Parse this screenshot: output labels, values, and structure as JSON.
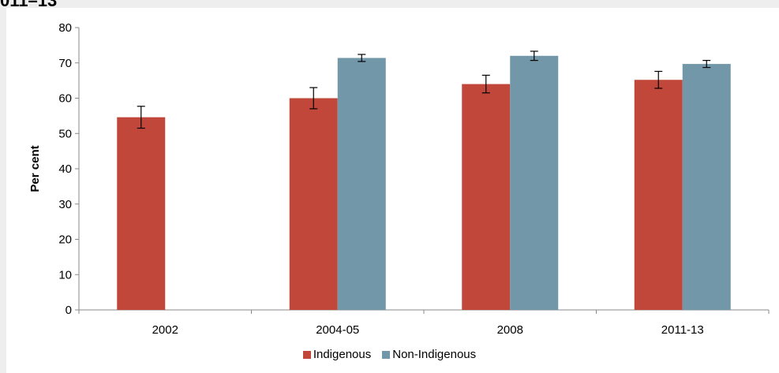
{
  "page": {
    "title_fragment": "011–13"
  },
  "chart_data": {
    "type": "bar",
    "title": "",
    "xlabel": "",
    "ylabel": "Per cent",
    "ylim": [
      0,
      80
    ],
    "yticks": [
      0,
      10,
      20,
      30,
      40,
      50,
      60,
      70,
      80
    ],
    "grid": false,
    "legend_position": "bottom",
    "categories": [
      "2002",
      "2004-05",
      "2008",
      "2011-13"
    ],
    "series": [
      {
        "name": "Indigenous",
        "color": "#c0473a",
        "values": [
          54.6,
          60.0,
          64.0,
          65.2
        ],
        "error_low": [
          51.5,
          57.0,
          61.5,
          62.8
        ],
        "error_high": [
          57.7,
          63.0,
          66.5,
          67.6
        ]
      },
      {
        "name": "Non-Indigenous",
        "color": "#7197a9",
        "values": [
          null,
          71.4,
          72.0,
          69.7
        ],
        "error_low": [
          null,
          70.4,
          70.7,
          68.7
        ],
        "error_high": [
          null,
          72.4,
          73.3,
          70.7
        ]
      }
    ]
  }
}
